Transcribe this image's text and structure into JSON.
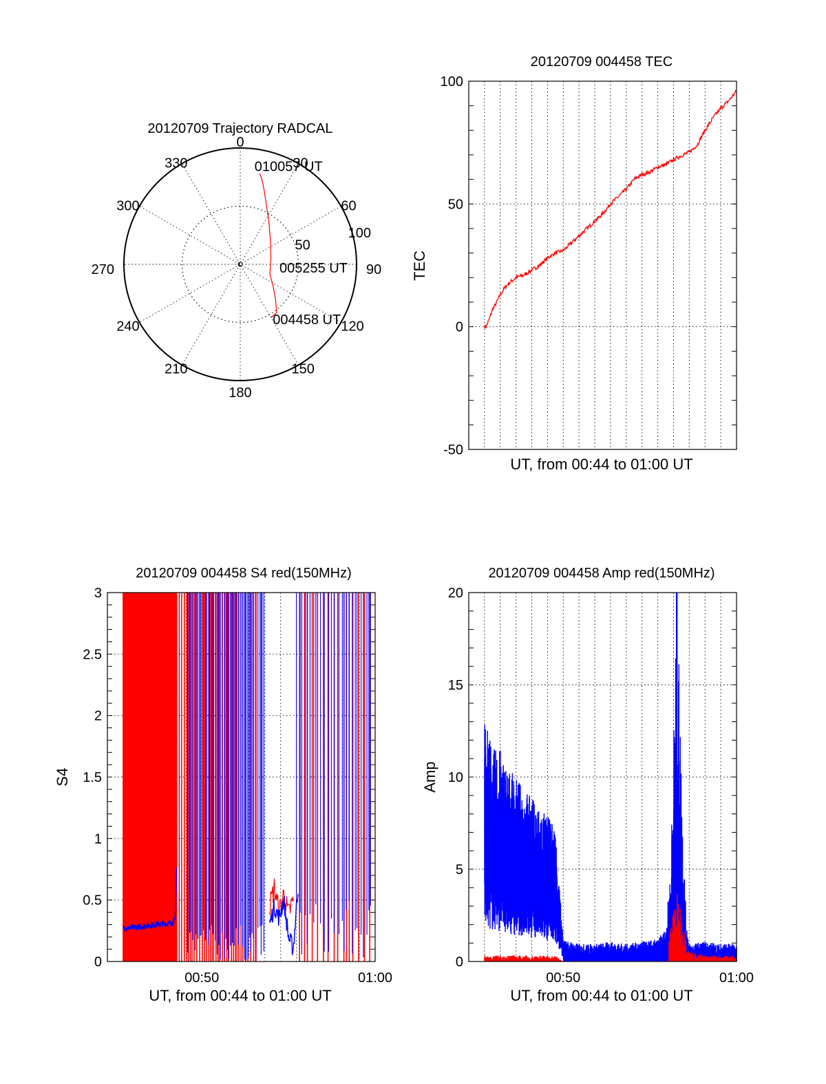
{
  "colors": {
    "red_series": "#ff0000",
    "blue_series": "#0000ff",
    "axes": "#000000",
    "background": "#ffffff"
  },
  "chart_data": [
    {
      "id": "trajectory",
      "type": "polar",
      "title": "20120709 Trajectory RADCAL",
      "angle_ticks": [
        "0",
        "30",
        "60",
        "90",
        "120",
        "150",
        "180",
        "210",
        "240",
        "270",
        "300",
        "330"
      ],
      "angle_tick_values": [
        0,
        30,
        60,
        90,
        120,
        150,
        180,
        210,
        240,
        270,
        300,
        330
      ],
      "radial_ticks": [
        "50",
        "100"
      ],
      "radial_tick_values": [
        50,
        100
      ],
      "radial_range": [
        0,
        100
      ],
      "grid": true,
      "track": {
        "color": "#ff0000",
        "points": [
          {
            "az": 150,
            "zen": 53
          },
          {
            "az": 143,
            "zen": 52
          },
          {
            "az": 135,
            "zen": 43
          },
          {
            "az": 122,
            "zen": 33
          },
          {
            "az": 109,
            "zen": 27
          },
          {
            "az": 97,
            "zen": 26
          },
          {
            "az": 78,
            "zen": 27
          },
          {
            "az": 52,
            "zen": 33
          },
          {
            "az": 33,
            "zen": 45
          },
          {
            "az": 23,
            "zen": 57
          },
          {
            "az": 17,
            "zen": 69
          },
          {
            "az": 14,
            "zen": 76
          },
          {
            "az": 12,
            "zen": 80
          }
        ]
      },
      "annotations": [
        {
          "text": "010057 UT",
          "az": 9,
          "zen": 86
        },
        {
          "text": "005255 UT",
          "az": 94,
          "zen": 35
        },
        {
          "text": "004458 UT",
          "az": 148,
          "zen": 55
        }
      ]
    },
    {
      "id": "tec",
      "type": "line",
      "title": "20120709 004458 TEC",
      "xlabel": "UT, from 00:44 to 01:00 UT",
      "ylabel": "TEC",
      "xlim": [
        44,
        61
      ],
      "ylim": [
        -50,
        100
      ],
      "yticks": [
        -50,
        0,
        50,
        100
      ],
      "xticks": [],
      "xtick_labels": [],
      "grid": true,
      "series": [
        {
          "color": "#ff0000",
          "x": [
            45.0,
            45.1,
            45.3,
            45.5,
            45.7,
            46.0,
            46.3,
            46.6,
            47.0,
            47.5,
            48.0,
            48.5,
            49.0,
            49.5,
            50.0,
            50.5,
            51.0,
            51.5,
            52.0,
            52.5,
            53.0,
            53.5,
            54.0,
            54.5,
            55.0,
            55.5,
            56.0,
            56.5,
            57.0,
            57.3,
            57.6,
            58.0,
            58.5,
            59.0,
            59.5,
            60.0,
            60.5,
            61.0
          ],
          "y": [
            0,
            0,
            3,
            7,
            9,
            13,
            16,
            18,
            20,
            21,
            23,
            25,
            28,
            30,
            31,
            34,
            37,
            40,
            43,
            46,
            50,
            53,
            56,
            60,
            62,
            63,
            65,
            66,
            68,
            69,
            70,
            71,
            74,
            80,
            85,
            89,
            92,
            96
          ]
        }
      ]
    },
    {
      "id": "s4",
      "type": "line",
      "title": "20120709 004458 S4 red(150MHz)",
      "xlabel": "UT, from 00:44 to 01:00 UT",
      "ylabel": "S4",
      "xlim": [
        44,
        61
      ],
      "ylim": [
        0,
        3
      ],
      "yticks": [
        0,
        0.5,
        1,
        1.5,
        2,
        2.5,
        3
      ],
      "ytick_labels": [
        "0",
        "0.5",
        "1",
        "1.5",
        "2",
        "2.5",
        "3"
      ],
      "xticks": [
        50,
        61
      ],
      "xtick_labels": [
        "00:50",
        "01:00"
      ],
      "grid": true,
      "series": [
        {
          "color": "#ff0000",
          "note_range": [
            45.0,
            57.0
          ],
          "x": [
            54.3,
            54.6,
            54.9,
            55.2,
            55.5,
            55.8
          ],
          "y": [
            0.45,
            0.6,
            0.4,
            0.55,
            0.38,
            0.5
          ]
        },
        {
          "color": "#0000ff",
          "x": [
            45.0,
            46.0,
            47.0,
            48.0,
            48.3,
            48.5,
            48.7,
            49.0,
            49.3,
            49.6,
            54.3,
            54.6,
            54.9,
            55.2,
            55.5,
            55.8,
            56.1
          ],
          "y": [
            0.27,
            0.28,
            0.3,
            0.31,
            0.33,
            1.2,
            1.4,
            1.8,
            2.6,
            3.0,
            0.3,
            0.45,
            0.35,
            0.5,
            0.2,
            0.1,
            0.6
          ]
        }
      ]
    },
    {
      "id": "amp",
      "type": "line",
      "title": "20120709 004458 Amp red(150MHz)",
      "xlabel": "UT, from 00:44 to 01:00 UT",
      "ylabel": "Amp",
      "xlim": [
        44,
        61
      ],
      "ylim": [
        0,
        20
      ],
      "yticks": [
        0,
        5,
        10,
        15,
        20
      ],
      "xticks": [
        50,
        61
      ],
      "xtick_labels": [
        "00:50",
        "01:00"
      ],
      "grid": true,
      "series": [
        {
          "color": "#0000ff",
          "x": [
            45.0,
            45.5,
            46.0,
            46.5,
            47.0,
            47.5,
            48.0,
            48.5,
            49.0,
            49.5,
            50.0,
            51.0,
            52.0,
            53.0,
            54.0,
            55.0,
            56.0,
            56.5,
            56.8,
            57.0,
            57.2,
            57.4,
            57.6,
            57.8,
            58.0,
            59.0,
            60.0,
            61.0
          ],
          "y": [
            13,
            11,
            11,
            10,
            9.5,
            9,
            8.5,
            8,
            7.5,
            7,
            1,
            0.8,
            0.8,
            0.9,
            0.8,
            0.9,
            1,
            1.5,
            4,
            10,
            18,
            12,
            6,
            2,
            0.8,
            0.9,
            0.8,
            0.8
          ]
        },
        {
          "color": "#ff0000",
          "x": [
            45.0,
            47.0,
            49.5,
            50.0,
            52.0,
            54.0,
            56.0,
            56.8,
            57.0,
            57.3,
            57.6,
            58.0,
            59.0,
            61.0
          ],
          "y": [
            0.3,
            0.3,
            0.3,
            0.0,
            0.3,
            0.5,
            0.6,
            1.5,
            2.8,
            3.5,
            2.0,
            0.5,
            0.3,
            0.3
          ]
        }
      ]
    }
  ]
}
